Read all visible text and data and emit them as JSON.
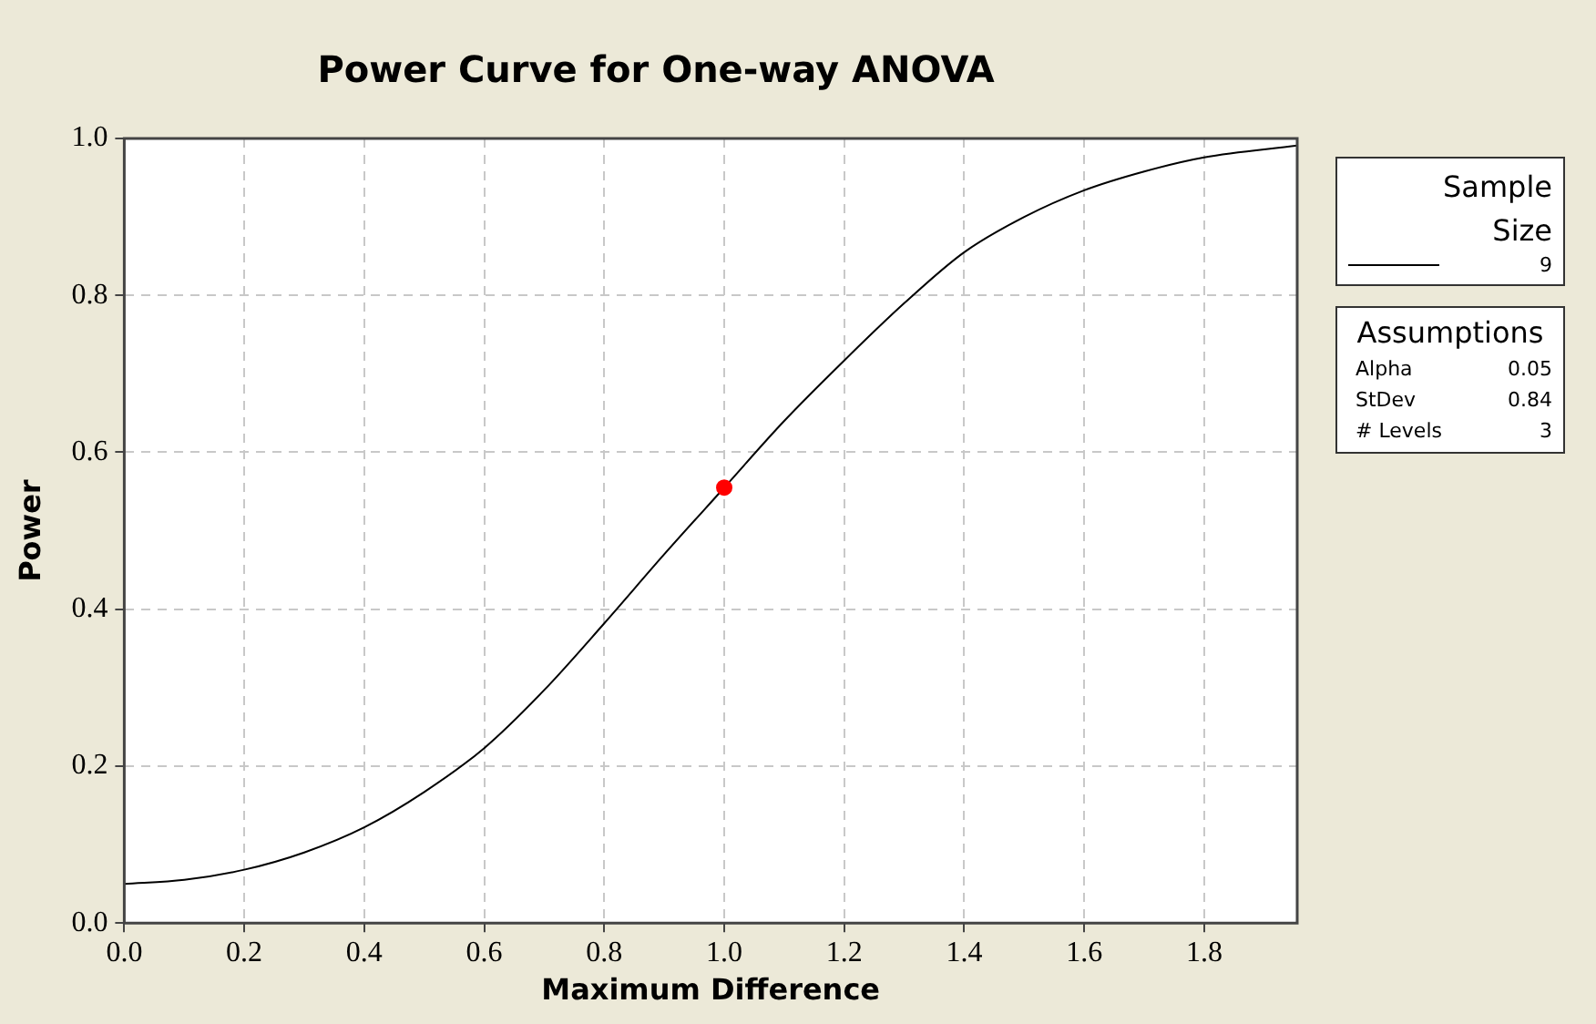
{
  "chart_data": {
    "type": "line",
    "title": "Power Curve for One-way ANOVA",
    "xlabel": "Maximum Difference",
    "ylabel": "Power",
    "legend_title": "Sample Size",
    "series": [
      {
        "name": "9",
        "color": "#000000",
        "marker": "none",
        "x": [
          0,
          0.1,
          0.2,
          0.3,
          0.4,
          0.5,
          0.6,
          0.7,
          0.8,
          0.9,
          1.0,
          1.1,
          1.2,
          1.3,
          1.4,
          1.5,
          1.6,
          1.7,
          1.8,
          1.955
        ],
        "values": [
          0.05,
          0.055,
          0.068,
          0.09,
          0.122,
          0.167,
          0.223,
          0.297,
          0.382,
          0.47,
          0.555,
          0.64,
          0.717,
          0.79,
          0.855,
          0.9,
          0.934,
          0.958,
          0.976,
          0.991
        ]
      },
      {
        "type": "scatter",
        "color": "#ff0000",
        "marker": "circle",
        "x": [
          1.0
        ],
        "values": [
          0.555
        ]
      }
    ],
    "xlim": [
      0,
      1.955
    ],
    "xticks": [
      {
        "value": 0,
        "label": "0.0"
      },
      0.2,
      0.4,
      0.6,
      0.8,
      {
        "value": 1,
        "label": "1.0"
      },
      1.2,
      1.4,
      1.6,
      1.8
    ],
    "ylim": [
      0,
      1
    ],
    "yticks": [
      {
        "value": 0,
        "label": "0.0"
      },
      0.2,
      0.4,
      0.6,
      0.8,
      {
        "value": 1,
        "label": "1.0"
      }
    ],
    "grid": true,
    "legend": "top right",
    "annotations": [
      "Assumptions",
      "Alpha",
      "0.05",
      "StDev",
      "0.84",
      "# Levels",
      "3"
    ]
  }
}
